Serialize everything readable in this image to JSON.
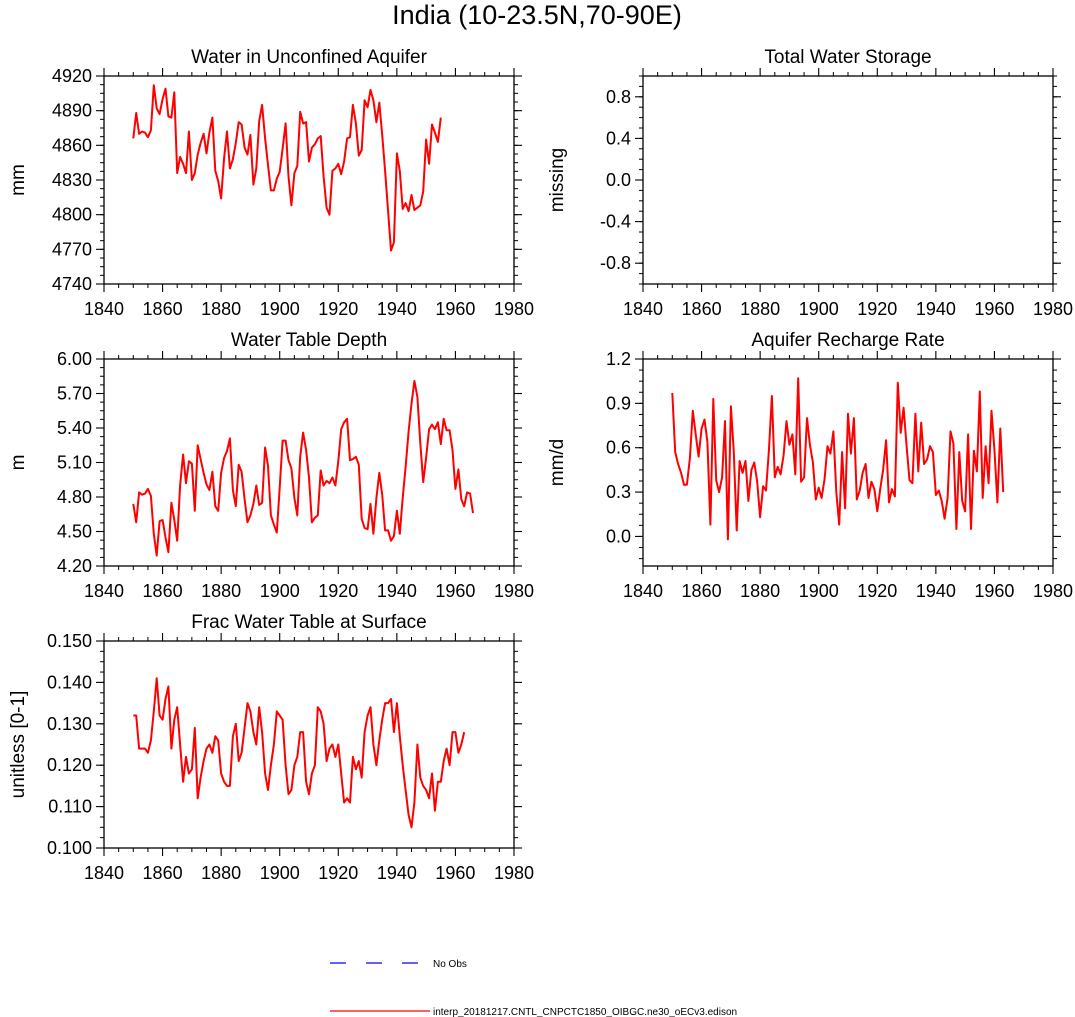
{
  "page": {
    "title": "India (10-23.5N,70-90E)"
  },
  "legend": {
    "obs_label": "No Obs",
    "model_label": "interp_20181217.CNTL_CNPCTC1850_OIBGC.ne30_oECv3.edison",
    "obs_color": "#0000ff",
    "model_color": "#ff0000"
  },
  "chart_data": [
    {
      "type": "line",
      "title": "Water in Unconfined Aquifer",
      "xlabel": "",
      "ylabel": "mm",
      "xlim": [
        1840,
        1980
      ],
      "ylim": [
        4740,
        4920
      ],
      "xticks": [
        1840,
        1860,
        1880,
        1900,
        1920,
        1940,
        1960,
        1980
      ],
      "yticks": [
        4740,
        4770,
        4800,
        4830,
        4860,
        4890,
        4920
      ],
      "ytick_labels": [
        "4740",
        "4770",
        "4800",
        "4830",
        "4860",
        "4890",
        "4920"
      ],
      "series": [
        {
          "name": "interp_20181217.CNTL_CNPCTC1850_OIBGC.ne30_oECv3.edison",
          "x_start": 1850,
          "values": [
            4866,
            4888,
            4870,
            4872,
            4871,
            4867,
            4873,
            4912,
            4892,
            4887,
            4900,
            4909,
            4885,
            4884,
            4906,
            4836,
            4850,
            4844,
            4836,
            4872,
            4830,
            4836,
            4852,
            4862,
            4870,
            4853,
            4871,
            4884,
            4838,
            4829,
            4814,
            4849,
            4872,
            4840,
            4848,
            4862,
            4880,
            4878,
            4858,
            4852,
            4869,
            4826,
            4840,
            4881,
            4895,
            4866,
            4843,
            4821,
            4821,
            4831,
            4837,
            4857,
            4879,
            4833,
            4808,
            4836,
            4842,
            4889,
            4879,
            4880,
            4846,
            4858,
            4861,
            4866,
            4868,
            4833,
            4806,
            4800,
            4838,
            4840,
            4844,
            4835,
            4846,
            4866,
            4867,
            4895,
            4879,
            4851,
            4856,
            4899,
            4893,
            4908,
            4899,
            4880,
            4897,
            4869,
            4838,
            4803,
            4769,
            4776,
            4853,
            4838,
            4805,
            4810,
            4803,
            4817,
            4804,
            4806,
            4808,
            4820,
            4865,
            4844,
            4878,
            4871,
            4863,
            4884
          ]
        }
      ]
    },
    {
      "type": "line",
      "title": "Total Water Storage",
      "xlabel": "",
      "ylabel": "missing",
      "xlim": [
        1840,
        1980
      ],
      "ylim": [
        -1.0,
        1.0
      ],
      "xticks": [
        1840,
        1860,
        1880,
        1900,
        1920,
        1940,
        1960,
        1980
      ],
      "yticks": [
        0.8,
        0.4,
        0.0,
        -0.4,
        -0.8
      ],
      "ytick_labels": [
        "0.8",
        "0.4",
        "0.0",
        "-0.4",
        "-0.8"
      ],
      "series": []
    },
    {
      "type": "line",
      "title": "Water Table Depth",
      "xlabel": "",
      "ylabel": "m",
      "xlim": [
        1840,
        1980
      ],
      "ylim": [
        4.2,
        6.0
      ],
      "xticks": [
        1840,
        1860,
        1880,
        1900,
        1920,
        1940,
        1960,
        1980
      ],
      "yticks": [
        4.2,
        4.5,
        4.8,
        5.1,
        5.4,
        5.7,
        6.0
      ],
      "ytick_labels": [
        "4.20",
        "4.50",
        "4.80",
        "5.10",
        "5.40",
        "5.70",
        "6.00"
      ],
      "series": [
        {
          "name": "interp_20181217.CNTL_CNPCTC1850_OIBGC.ne30_oECv3.edison",
          "x_start": 1850,
          "values": [
            4.74,
            4.58,
            4.84,
            4.82,
            4.83,
            4.87,
            4.81,
            4.48,
            4.29,
            4.59,
            4.6,
            4.45,
            4.32,
            4.75,
            4.6,
            4.42,
            4.9,
            5.17,
            4.92,
            5.11,
            5.09,
            4.68,
            5.25,
            5.13,
            5.01,
            4.91,
            4.86,
            5.02,
            4.72,
            4.68,
            5.01,
            5.14,
            5.2,
            5.31,
            4.86,
            4.72,
            5.08,
            5.02,
            4.78,
            4.58,
            4.64,
            4.74,
            4.9,
            4.73,
            4.75,
            5.23,
            5.07,
            4.64,
            4.56,
            4.49,
            4.88,
            5.29,
            5.29,
            5.12,
            5.05,
            4.79,
            4.64,
            5.15,
            5.36,
            5.21,
            4.97,
            4.58,
            4.62,
            4.64,
            5.03,
            4.9,
            4.94,
            4.92,
            4.97,
            4.9,
            5.11,
            5.39,
            5.45,
            5.48,
            5.12,
            5.13,
            5.15,
            5.08,
            4.61,
            4.53,
            4.52,
            4.74,
            4.48,
            4.79,
            5.01,
            4.82,
            4.51,
            4.51,
            4.42,
            4.46,
            4.68,
            4.48,
            4.79,
            5.06,
            5.37,
            5.61,
            5.81,
            5.67,
            5.27,
            4.93,
            5.14,
            5.39,
            5.43,
            5.39,
            5.45,
            5.26,
            5.48,
            5.38,
            5.38,
            5.21,
            4.87,
            5.04,
            4.78,
            4.72,
            4.84,
            4.83,
            4.66
          ]
        }
      ]
    },
    {
      "type": "line",
      "title": "Aquifer Recharge Rate",
      "xlabel": "",
      "ylabel": "mm/d",
      "xlim": [
        1840,
        1980
      ],
      "ylim": [
        -0.2,
        1.2
      ],
      "xticks": [
        1840,
        1860,
        1880,
        1900,
        1920,
        1940,
        1960,
        1980
      ],
      "yticks": [
        0.0,
        0.3,
        0.6,
        0.9,
        1.2
      ],
      "ytick_labels": [
        "0.0",
        "0.3",
        "0.6",
        "0.9",
        "1.2"
      ],
      "series": [
        {
          "name": "interp_20181217.CNTL_CNPCTC1850_OIBGC.ne30_oECv3.edison",
          "x_start": 1850,
          "values": [
            0.97,
            0.57,
            0.49,
            0.43,
            0.35,
            0.35,
            0.53,
            0.85,
            0.69,
            0.54,
            0.73,
            0.79,
            0.64,
            0.08,
            0.93,
            0.38,
            0.3,
            0.4,
            0.78,
            -0.02,
            0.88,
            0.57,
            0.04,
            0.51,
            0.43,
            0.51,
            0.24,
            0.45,
            0.5,
            0.37,
            0.13,
            0.34,
            0.31,
            0.58,
            0.95,
            0.4,
            0.47,
            0.42,
            0.55,
            0.78,
            0.62,
            0.69,
            0.42,
            1.07,
            0.37,
            0.4,
            0.8,
            0.62,
            0.5,
            0.25,
            0.33,
            0.26,
            0.39,
            0.61,
            0.56,
            0.71,
            0.3,
            0.08,
            0.57,
            0.19,
            0.83,
            0.56,
            0.8,
            0.25,
            0.31,
            0.43,
            0.49,
            0.26,
            0.37,
            0.32,
            0.17,
            0.32,
            0.45,
            0.65,
            0.23,
            0.32,
            0.27,
            1.04,
            0.7,
            0.87,
            0.61,
            0.38,
            0.36,
            0.83,
            0.44,
            0.77,
            0.49,
            0.52,
            0.61,
            0.57,
            0.28,
            0.31,
            0.24,
            0.12,
            0.26,
            0.71,
            0.63,
            0.05,
            0.57,
            0.24,
            0.17,
            0.69,
            0.05,
            0.58,
            0.44,
            0.98,
            0.26,
            0.61,
            0.36,
            0.85,
            0.59,
            0.23,
            0.73,
            0.3
          ]
        }
      ]
    },
    {
      "type": "line",
      "title": "Frac Water Table at Surface",
      "xlabel": "",
      "ylabel": "unitless [0-1]",
      "xlim": [
        1840,
        1980
      ],
      "ylim": [
        0.1,
        0.15
      ],
      "xticks": [
        1840,
        1860,
        1880,
        1900,
        1920,
        1940,
        1960,
        1980
      ],
      "yticks": [
        0.1,
        0.11,
        0.12,
        0.13,
        0.14,
        0.15
      ],
      "ytick_labels": [
        "0.100",
        "0.110",
        "0.120",
        "0.130",
        "0.140",
        "0.150"
      ],
      "series": [
        {
          "name": "interp_20181217.CNTL_CNPCTC1850_OIBGC.ne30_oECv3.edison",
          "x_start": 1850,
          "values": [
            0.132,
            0.132,
            0.124,
            0.124,
            0.124,
            0.123,
            0.126,
            0.133,
            0.141,
            0.132,
            0.131,
            0.136,
            0.139,
            0.124,
            0.131,
            0.134,
            0.125,
            0.116,
            0.122,
            0.118,
            0.119,
            0.129,
            0.112,
            0.117,
            0.121,
            0.124,
            0.125,
            0.123,
            0.127,
            0.126,
            0.118,
            0.116,
            0.115,
            0.115,
            0.127,
            0.13,
            0.121,
            0.123,
            0.129,
            0.135,
            0.133,
            0.128,
            0.125,
            0.134,
            0.128,
            0.118,
            0.114,
            0.12,
            0.125,
            0.133,
            0.132,
            0.131,
            0.12,
            0.113,
            0.114,
            0.12,
            0.122,
            0.128,
            0.128,
            0.116,
            0.113,
            0.118,
            0.12,
            0.134,
            0.133,
            0.13,
            0.121,
            0.124,
            0.125,
            0.122,
            0.125,
            0.118,
            0.111,
            0.112,
            0.111,
            0.122,
            0.119,
            0.121,
            0.117,
            0.128,
            0.132,
            0.134,
            0.125,
            0.12,
            0.126,
            0.131,
            0.135,
            0.135,
            0.136,
            0.128,
            0.135,
            0.127,
            0.12,
            0.114,
            0.108,
            0.105,
            0.111,
            0.125,
            0.117,
            0.115,
            0.114,
            0.112,
            0.118,
            0.109,
            0.116,
            0.116,
            0.121,
            0.124,
            0.12,
            0.128,
            0.128,
            0.123,
            0.125,
            0.128
          ]
        }
      ]
    }
  ]
}
